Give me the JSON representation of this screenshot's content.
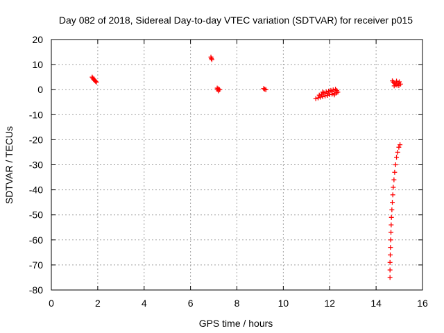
{
  "chart_data": {
    "type": "scatter",
    "title": "Day 082 of 2018, Sidereal Day-to-day VTEC variation (SDTVAR) for receiver p015",
    "xlabel": "GPS time / hours",
    "ylabel": "SDTVAR / TECUs",
    "xlim": [
      0,
      16
    ],
    "ylim": [
      -80,
      20
    ],
    "xticks": [
      "0",
      "2",
      "4",
      "6",
      "8",
      "10",
      "12",
      "14",
      "16"
    ],
    "yticks": [
      "20",
      "10",
      "0",
      "-10",
      "-20",
      "-30",
      "-40",
      "-50",
      "-60",
      "-70",
      "-80"
    ],
    "grid": true,
    "legend": "none",
    "marker": "+",
    "marker_color": "#ff0000",
    "points": [
      [
        1.76,
        5.0
      ],
      [
        1.79,
        4.6
      ],
      [
        1.82,
        4.2
      ],
      [
        1.85,
        3.9
      ],
      [
        1.88,
        3.6
      ],
      [
        1.91,
        3.3
      ],
      [
        1.94,
        3.0
      ],
      [
        6.88,
        13.0
      ],
      [
        6.9,
        12.4
      ],
      [
        6.92,
        12.0
      ],
      [
        7.15,
        0.6
      ],
      [
        7.2,
        0.3
      ],
      [
        7.25,
        0.0
      ],
      [
        7.2,
        -0.5
      ],
      [
        7.17,
        0.1
      ],
      [
        9.15,
        0.4
      ],
      [
        9.2,
        0.2
      ],
      [
        9.25,
        0.0
      ],
      [
        11.4,
        -3.6
      ],
      [
        11.5,
        -3.3
      ],
      [
        11.6,
        -3.0
      ],
      [
        11.7,
        -2.8
      ],
      [
        11.8,
        -2.5
      ],
      [
        11.9,
        -2.3
      ],
      [
        12.0,
        -2.0
      ],
      [
        12.1,
        -1.8
      ],
      [
        12.2,
        -1.5
      ],
      [
        12.3,
        -1.2
      ],
      [
        12.35,
        -1.0
      ],
      [
        11.55,
        -2.2
      ],
      [
        11.65,
        -1.8
      ],
      [
        11.75,
        -1.3
      ],
      [
        11.85,
        -0.9
      ],
      [
        11.95,
        -0.6
      ],
      [
        12.05,
        -0.3
      ],
      [
        12.15,
        -0.1
      ],
      [
        12.25,
        0.2
      ],
      [
        12.3,
        -0.4
      ],
      [
        11.7,
        -1.0
      ],
      [
        11.9,
        -1.5
      ],
      [
        12.1,
        -0.8
      ],
      [
        12.2,
        -2.1
      ],
      [
        14.7,
        3.5
      ],
      [
        14.75,
        3.0
      ],
      [
        14.8,
        2.5
      ],
      [
        14.85,
        2.0
      ],
      [
        14.9,
        1.8
      ],
      [
        14.95,
        2.6
      ],
      [
        15.0,
        3.1
      ],
      [
        15.05,
        2.2
      ],
      [
        14.78,
        1.5
      ],
      [
        14.88,
        3.4
      ],
      [
        14.98,
        1.6
      ],
      [
        14.6,
        -75.0
      ],
      [
        14.6,
        -72.0
      ],
      [
        14.6,
        -69.0
      ],
      [
        14.61,
        -66.0
      ],
      [
        14.62,
        -63.0
      ],
      [
        14.63,
        -60.0
      ],
      [
        14.64,
        -57.0
      ],
      [
        14.65,
        -54.0
      ],
      [
        14.66,
        -51.0
      ],
      [
        14.68,
        -48.0
      ],
      [
        14.7,
        -45.0
      ],
      [
        14.72,
        -42.0
      ],
      [
        14.74,
        -39.0
      ],
      [
        14.77,
        -36.0
      ],
      [
        14.8,
        -33.0
      ],
      [
        14.84,
        -30.0
      ],
      [
        14.88,
        -27.0
      ],
      [
        14.93,
        -25.0
      ],
      [
        14.98,
        -23.0
      ],
      [
        15.03,
        -22.0
      ]
    ]
  }
}
